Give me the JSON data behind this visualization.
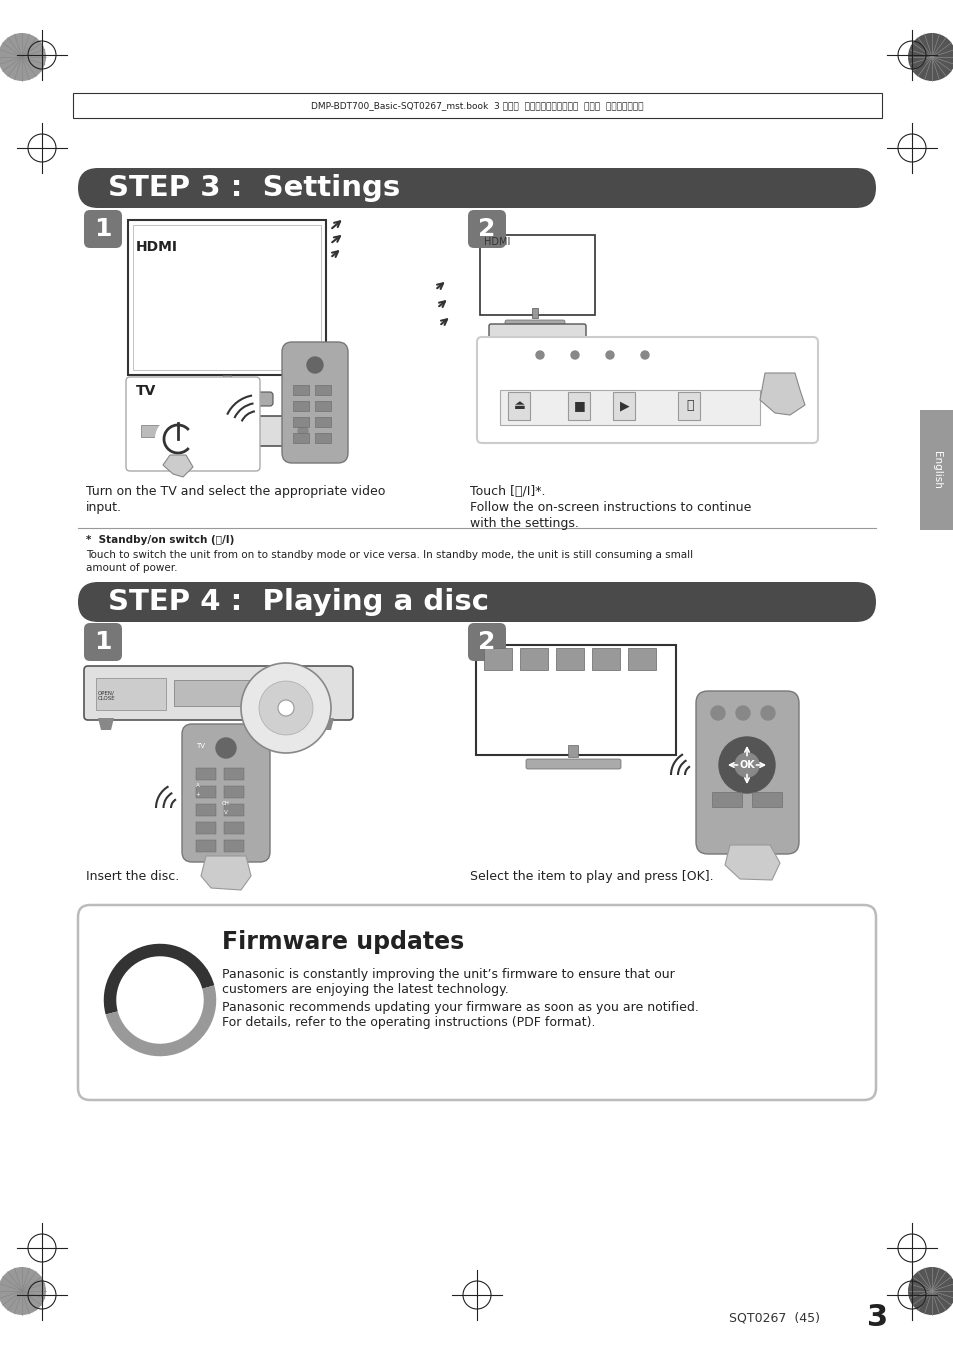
{
  "page_bg": "#ffffff",
  "header_line_text": "DMP-BDT700_Basic-SQT0267_mst.book  3 ページ  ２０１４年５月１３日  火曜日  午後４時５０分",
  "step3_title": "STEP 3 :  Settings",
  "step3_header_bg": "#4a4a4a",
  "step4_title": "STEP 4 :  Playing a disc",
  "step4_header_bg": "#4a4a4a",
  "label_bg": "#777777",
  "hdmi_text": "HDMI",
  "tv_text": "TV",
  "caption1_line1": "Turn on the TV and select the appropriate video",
  "caption1_line2": "input.",
  "caption2_line1": "Touch [⏻/I]*.",
  "caption2_line2": "Follow the on-screen instructions to continue",
  "caption2_line3": "with the settings.",
  "footnote_bold": "Standby/on switch (⏻/I)",
  "footnote_text1": "Touch to switch the unit from on to standby mode or vice versa. In standby mode, the unit is still consuming a small",
  "footnote_text2": "amount of power.",
  "caption3": "Insert the disc.",
  "caption4": "Select the item to play and press [OK].",
  "fw_title": "Firmware updates",
  "fw_line1": "Panasonic is constantly improving the unit’s firmware to ensure that our",
  "fw_line2": "customers are enjoying the latest technology.",
  "fw_line3": "Panasonic recommends updating your firmware as soon as you are notified.",
  "fw_line4": "For details, refer to the operating instructions (PDF format).",
  "footer_text": "SQT0267  (45)",
  "footer_page": "3",
  "english_label": "English",
  "footnote_star": "*"
}
